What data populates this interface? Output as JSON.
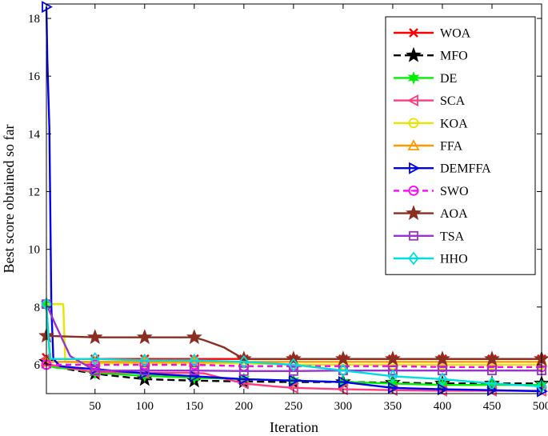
{
  "chart_data": {
    "type": "line",
    "title": "",
    "xlabel": "Iteration",
    "ylabel": "Best score obtained so far",
    "xlim": [
      1,
      500
    ],
    "ylim": [
      5.0,
      18.5
    ],
    "xticks": [
      50,
      100,
      150,
      200,
      250,
      300,
      350,
      400,
      450,
      500
    ],
    "yticks": [
      6,
      8,
      10,
      12,
      14,
      16,
      18
    ],
    "legend_position": "top-right",
    "grid": false,
    "series": [
      {
        "name": "WOA",
        "color": "#ff0000",
        "dash": "",
        "marker": "x",
        "x": [
          1,
          5,
          500
        ],
        "y": [
          6.25,
          6.2,
          6.2
        ]
      },
      {
        "name": "MFO",
        "color": "#000000",
        "dash": "9,5",
        "marker": "star5",
        "x": [
          1,
          8,
          30,
          60,
          100,
          150,
          200,
          250,
          300,
          350,
          400,
          450,
          500
        ],
        "y": [
          6.1,
          5.95,
          5.8,
          5.65,
          5.5,
          5.45,
          5.42,
          5.4,
          5.4,
          5.38,
          5.35,
          5.35,
          5.35
        ]
      },
      {
        "name": "DE",
        "color": "#00ee00",
        "dash": "",
        "marker": "star6",
        "x": [
          1,
          3,
          5,
          10,
          30,
          50,
          100,
          150,
          200,
          250,
          300,
          350,
          400,
          450,
          500
        ],
        "y": [
          8.1,
          7.0,
          5.95,
          5.9,
          5.85,
          5.72,
          5.62,
          5.55,
          5.5,
          5.45,
          5.4,
          5.35,
          5.3,
          5.3,
          5.3
        ]
      },
      {
        "name": "SCA",
        "color": "#ff3b80",
        "dash": "",
        "marker": "triangle-left",
        "x": [
          1,
          5,
          30,
          50,
          100,
          150,
          160,
          200,
          230,
          250,
          300,
          350,
          400,
          450,
          500
        ],
        "y": [
          6.2,
          6.0,
          5.85,
          5.75,
          5.72,
          5.72,
          5.7,
          5.35,
          5.25,
          5.2,
          5.15,
          5.12,
          5.1,
          5.1,
          5.1
        ]
      },
      {
        "name": "KOA",
        "color": "#e6e600",
        "dash": "",
        "marker": "circle",
        "x": [
          1,
          5,
          10,
          18,
          20,
          50,
          100,
          150,
          200,
          250,
          300,
          350,
          400,
          450,
          500
        ],
        "y": [
          8.1,
          8.1,
          8.1,
          8.1,
          6.1,
          6.05,
          6.05,
          6.05,
          6.05,
          6.0,
          6.0,
          6.0,
          6.0,
          6.0,
          6.0
        ]
      },
      {
        "name": "FFA",
        "color": "#ff9900",
        "dash": "",
        "marker": "triangle-up",
        "x": [
          1,
          500
        ],
        "y": [
          6.1,
          6.1
        ]
      },
      {
        "name": "DEMFFA",
        "color": "#0000ee",
        "dash": "",
        "marker": "triangle-right",
        "x": [
          1,
          2,
          4,
          6,
          8,
          15,
          30,
          50,
          100,
          150,
          200,
          250,
          300,
          350,
          400,
          450,
          500
        ],
        "y": [
          18.4,
          16.5,
          14.2,
          8.0,
          6.2,
          5.95,
          5.9,
          5.85,
          5.7,
          5.6,
          5.5,
          5.45,
          5.4,
          5.2,
          5.15,
          5.12,
          5.08
        ]
      },
      {
        "name": "SWO",
        "color": "#ff00ff",
        "dash": "7,5",
        "marker": "circle-bar",
        "x": [
          1,
          10,
          50,
          100,
          150,
          200,
          250,
          300,
          350,
          400,
          450,
          500
        ],
        "y": [
          6.0,
          6.0,
          6.0,
          6.0,
          6.0,
          5.95,
          5.95,
          5.95,
          5.95,
          5.92,
          5.92,
          5.92
        ]
      },
      {
        "name": "AOA",
        "color": "#8b2e22",
        "dash": "",
        "marker": "star5",
        "x": [
          1,
          50,
          100,
          150,
          160,
          180,
          195,
          200,
          250,
          300,
          350,
          400,
          450,
          500
        ],
        "y": [
          7.0,
          6.95,
          6.95,
          6.95,
          6.85,
          6.6,
          6.3,
          6.2,
          6.2,
          6.2,
          6.2,
          6.2,
          6.2,
          6.2
        ]
      },
      {
        "name": "TSA",
        "color": "#9932cc",
        "dash": "",
        "marker": "square",
        "x": [
          1,
          10,
          25,
          50,
          100,
          150,
          200,
          250,
          300,
          350,
          400,
          450,
          500
        ],
        "y": [
          8.1,
          7.4,
          6.3,
          5.8,
          5.8,
          5.8,
          5.78,
          5.78,
          5.8,
          5.8,
          5.8,
          5.8,
          5.8
        ]
      },
      {
        "name": "HHO",
        "color": "#00dddd",
        "dash": "",
        "marker": "diamond",
        "x": [
          1,
          3,
          5,
          50,
          100,
          150,
          200,
          250,
          300,
          350,
          400,
          450,
          500
        ],
        "y": [
          8.1,
          7.0,
          6.2,
          6.2,
          6.15,
          6.15,
          6.1,
          6.0,
          5.8,
          5.6,
          5.5,
          5.35,
          5.25
        ]
      }
    ]
  }
}
